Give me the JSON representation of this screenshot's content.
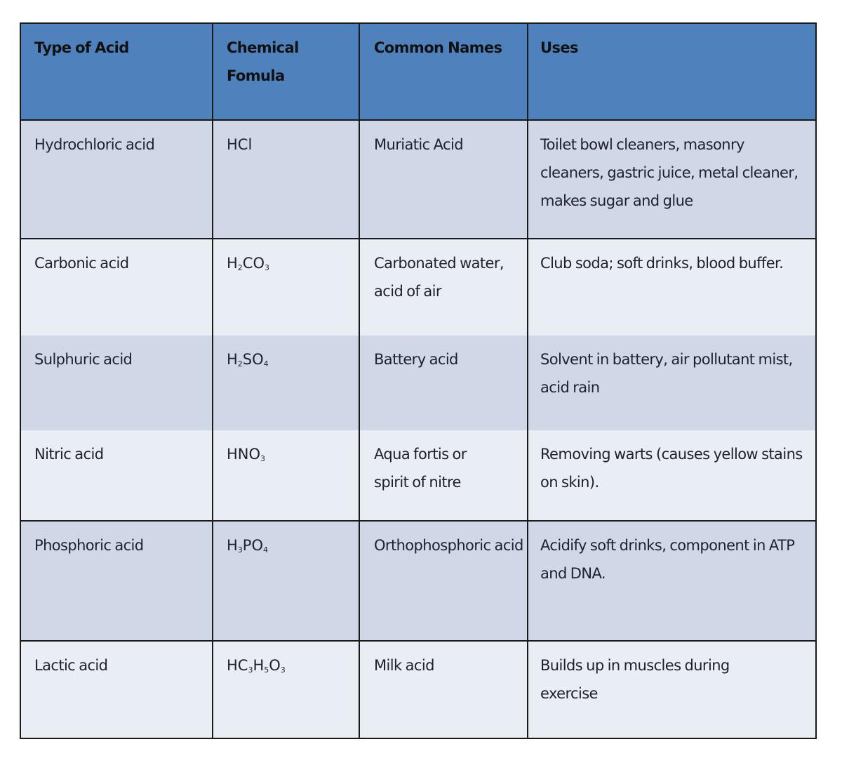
{
  "table": {
    "headers": [
      "Type of Acid",
      "Chemical Fomula",
      "Common Names",
      "Uses"
    ],
    "colors": {
      "header_bg": "#4F81BD",
      "row_odd_bg": "#D0D8E8",
      "row_even_bg": "#E9EDF4",
      "border": "#1a1a1a"
    },
    "rows": [
      {
        "type": "Hydrochloric acid",
        "formula": "HCl",
        "formula_parts": [
          {
            "t": "HCl"
          }
        ],
        "common_names": "Muriatic Acid",
        "uses": "Toilet bowl cleaners, masonry cleaners, gastric juice, metal cleaner, makes sugar and glue"
      },
      {
        "type": "Carbonic acid",
        "formula": "H2CO3",
        "formula_parts": [
          {
            "t": "H"
          },
          {
            "s": "2"
          },
          {
            "t": "CO"
          },
          {
            "s": "3"
          }
        ],
        "common_names": "Carbonated water, acid of air",
        "uses": "Club soda; soft drinks, blood buffer."
      },
      {
        "type": "Sulphuric acid",
        "formula": "H2SO4",
        "formula_parts": [
          {
            "t": "H"
          },
          {
            "s": "2"
          },
          {
            "t": "SO"
          },
          {
            "s": "4"
          }
        ],
        "common_names": "Battery acid",
        "uses": "Solvent in battery, air pollutant mist, acid rain"
      },
      {
        "type": "Nitric acid",
        "formula": "HNO3",
        "formula_parts": [
          {
            "t": "HNO"
          },
          {
            "s": "3"
          }
        ],
        "common_names": "Aqua fortis or spirit of nitre",
        "uses": "Removing warts (causes yellow stains on skin)."
      },
      {
        "type": "Phosphoric acid",
        "formula": "H3PO4",
        "formula_parts": [
          {
            "t": "H"
          },
          {
            "s": "3"
          },
          {
            "t": "PO"
          },
          {
            "s": "4"
          }
        ],
        "common_names": "Orthophosphoric acid",
        "uses": "Acidify soft drinks, component in ATP and DNA."
      },
      {
        "type": "Lactic acid",
        "formula": "HC3H5O3",
        "formula_parts": [
          {
            "t": "HC"
          },
          {
            "s": "3"
          },
          {
            "t": "H"
          },
          {
            "s": "5"
          },
          {
            "t": "O"
          },
          {
            "s": "3"
          }
        ],
        "common_names": "Milk acid",
        "uses": "Builds up in muscles during exercise"
      }
    ]
  }
}
